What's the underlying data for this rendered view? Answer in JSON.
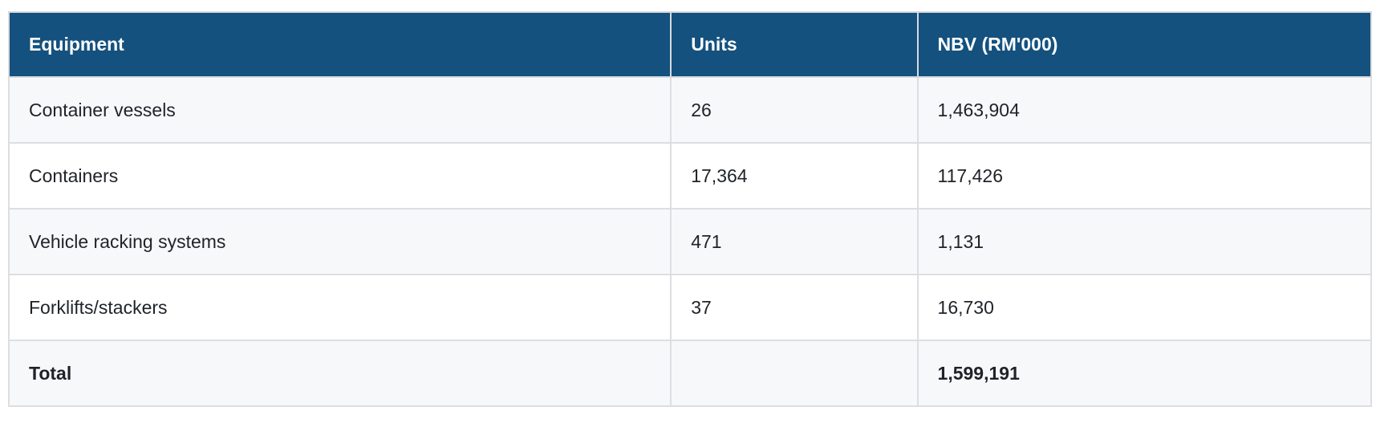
{
  "table": {
    "headers": {
      "equipment": "Equipment",
      "units": "Units",
      "nbv": "NBV (RM'000)"
    },
    "rows": [
      {
        "equipment": "Container vessels",
        "units": "26",
        "nbv": "1,463,904"
      },
      {
        "equipment": "Containers",
        "units": "17,364",
        "nbv": "117,426"
      },
      {
        "equipment": "Vehicle racking systems",
        "units": "471",
        "nbv": "1,131"
      },
      {
        "equipment": "Forklifts/stackers",
        "units": "37",
        "nbv": "16,730"
      }
    ],
    "total_row": {
      "equipment": "Total",
      "units": "",
      "nbv": "1,599,191"
    }
  },
  "colors": {
    "header_bg": "#14517e",
    "header_text": "#ffffff",
    "stripe_bg": "#f6f8fa",
    "row_bg": "#ffffff",
    "border": "#dcdee2",
    "body_text": "#1f2328"
  }
}
